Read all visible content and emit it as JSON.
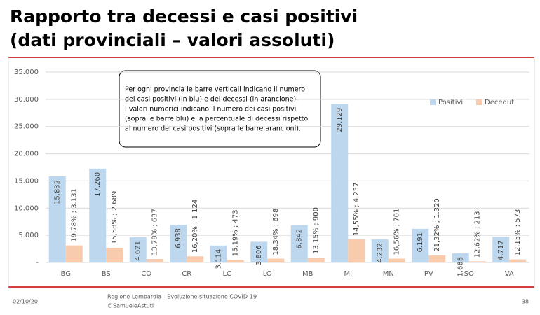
{
  "slide": {
    "title": [
      "Rapporto tra decessi e casi positivi",
      "(dati provinciali – valori assoluti)"
    ],
    "footer": {
      "date": "02/10/20",
      "source": [
        "Regione Lombardia - Evoluzione situazione COVID-19",
        "©SamueleAstuti"
      ],
      "page": "38"
    }
  },
  "chart_data": {
    "type": "bar",
    "categories": [
      "BG",
      "BS",
      "CO",
      "CR",
      "LC",
      "LO",
      "MB",
      "MI",
      "MN",
      "PV",
      "SO",
      "VA"
    ],
    "series": [
      {
        "name": "Positivi",
        "color": "#bdd7ee",
        "values": [
          15832,
          17260,
          4621,
          6938,
          3114,
          3806,
          6842,
          29129,
          4232,
          6191,
          1688,
          4717
        ],
        "value_labels": [
          "15.832",
          "17.260",
          "4.621",
          "6.938",
          "3.114",
          "3.806",
          "6.842",
          "29.129",
          "4.232",
          "6.191",
          "1.688",
          "4.717"
        ]
      },
      {
        "name": "Deceduti",
        "color": "#f8cbad",
        "values": [
          3131,
          2689,
          637,
          1124,
          473,
          698,
          900,
          4237,
          701,
          1320,
          213,
          573
        ],
        "value_labels": [
          "19,78% ; 3.131",
          "15,58% ; 2.689",
          "13,78% ; 637",
          "16,20% ; 1.124",
          "15,19% ; 473",
          "18,34% ; 698",
          "13,15% ; 900",
          "14,55% ; 4.237",
          "16,56% ; 701",
          "21,32% ; 1.320",
          "12,62% ; 213",
          "12,15% ; 573"
        ]
      }
    ],
    "ylim": [
      0,
      35000
    ],
    "yticks": [
      {
        "value": 0,
        "label": "-"
      },
      {
        "value": 5000,
        "label": "5.000"
      },
      {
        "value": 10000,
        "label": "10.000"
      },
      {
        "value": 15000,
        "label": "15.000"
      },
      {
        "value": 20000,
        "label": "20.000"
      },
      {
        "value": 25000,
        "label": "25.000"
      },
      {
        "value": 30000,
        "label": "30.000"
      },
      {
        "value": 35000,
        "label": "35.000"
      }
    ],
    "grid": true,
    "legend": "top-right",
    "annotation": [
      "Per ogni provincia le barre verticali indicano il numero",
      "dei casi positivi (in blu) e dei decessi (in arancione).",
      "I valori numerici indicano il numero dei casi positivi",
      "(sopra le barre blu) e la percentuale di decessi rispetto",
      "al numero dei casi positivi (sopra le barre arancioni)."
    ]
  }
}
